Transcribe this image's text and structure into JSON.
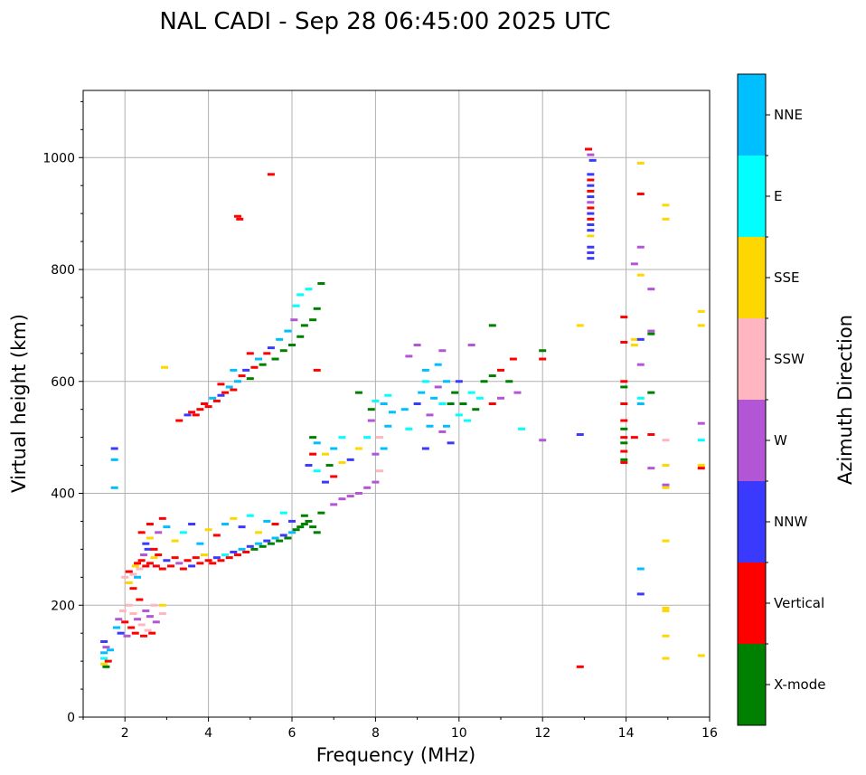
{
  "chart_data": {
    "type": "scatter",
    "title": "NAL CADI - Sep 28 06:45:00 2025 UTC",
    "xlabel": "Frequency (MHz)",
    "ylabel": "Virtual height (km)",
    "xlim": [
      1,
      16
    ],
    "ylim": [
      0,
      1120
    ],
    "xticks": [
      2,
      4,
      6,
      8,
      10,
      12,
      14,
      16
    ],
    "yticks": [
      0,
      200,
      400,
      600,
      800,
      1000
    ],
    "xtick_labels": [
      "2",
      "4",
      "6",
      "8",
      "10",
      "12",
      "14",
      "16"
    ],
    "ytick_labels": [
      "0",
      "200",
      "400",
      "600",
      "800",
      "1000"
    ],
    "grid": true,
    "colorbar": {
      "label": "Azimuth Direction",
      "categories": [
        {
          "name": "X-mode",
          "color": "#008000"
        },
        {
          "name": "Vertical",
          "color": "#ff0000"
        },
        {
          "name": "NNW",
          "color": "#3a3aff"
        },
        {
          "name": "W",
          "color": "#b356d6"
        },
        {
          "name": "SSW",
          "color": "#ffb6c1"
        },
        {
          "name": "SSE",
          "color": "#ffd700"
        },
        {
          "name": "E",
          "color": "#00ffff"
        },
        {
          "name": "NNE",
          "color": "#00bfff"
        }
      ]
    },
    "points": [
      [
        1.5,
        95,
        "SSE"
      ],
      [
        1.5,
        105,
        "E"
      ],
      [
        1.55,
        90,
        "X-mode"
      ],
      [
        1.5,
        115,
        "NNE"
      ],
      [
        1.55,
        125,
        "W"
      ],
      [
        1.5,
        135,
        "NNW"
      ],
      [
        1.6,
        100,
        "Vertical"
      ],
      [
        1.65,
        120,
        "NNE"
      ],
      [
        1.75,
        480,
        "NNW"
      ],
      [
        1.75,
        460,
        "NNE"
      ],
      [
        1.75,
        410,
        "NNE"
      ],
      [
        1.8,
        160,
        "NNE"
      ],
      [
        1.85,
        175,
        "W"
      ],
      [
        1.9,
        150,
        "NNW"
      ],
      [
        1.95,
        190,
        "SSW"
      ],
      [
        2.0,
        170,
        "Vertical"
      ],
      [
        2.05,
        145,
        "W"
      ],
      [
        2.1,
        200,
        "SSW"
      ],
      [
        2.15,
        160,
        "Vertical"
      ],
      [
        2.2,
        185,
        "SSW"
      ],
      [
        2.25,
        150,
        "Vertical"
      ],
      [
        2.3,
        175,
        "W"
      ],
      [
        2.35,
        210,
        "Vertical"
      ],
      [
        2.4,
        165,
        "SSW"
      ],
      [
        2.45,
        145,
        "Vertical"
      ],
      [
        2.5,
        190,
        "W"
      ],
      [
        2.55,
        155,
        "SSW"
      ],
      [
        2.6,
        180,
        "W"
      ],
      [
        2.65,
        150,
        "Vertical"
      ],
      [
        2.7,
        200,
        "SSW"
      ],
      [
        2.75,
        170,
        "W"
      ],
      [
        2.9,
        185,
        "SSW"
      ],
      [
        2.9,
        200,
        "SSE"
      ],
      [
        2.2,
        230,
        "Vertical"
      ],
      [
        2.1,
        240,
        "SSE"
      ],
      [
        2.3,
        250,
        "NNE"
      ],
      [
        2.0,
        250,
        "SSW"
      ],
      [
        2.1,
        260,
        "Vertical"
      ],
      [
        2.2,
        255,
        "SSW"
      ],
      [
        2.25,
        270,
        "SSE"
      ],
      [
        2.3,
        275,
        "Vertical"
      ],
      [
        2.35,
        265,
        "SSW"
      ],
      [
        2.4,
        280,
        "Vertical"
      ],
      [
        2.45,
        290,
        "W"
      ],
      [
        2.5,
        270,
        "Vertical"
      ],
      [
        2.55,
        300,
        "NNW"
      ],
      [
        2.6,
        275,
        "Vertical"
      ],
      [
        2.7,
        285,
        "SSE"
      ],
      [
        2.75,
        270,
        "Vertical"
      ],
      [
        2.8,
        290,
        "Vertical"
      ],
      [
        2.9,
        265,
        "Vertical"
      ],
      [
        3.0,
        280,
        "NNW"
      ],
      [
        3.1,
        270,
        "Vertical"
      ],
      [
        3.2,
        285,
        "Vertical"
      ],
      [
        3.3,
        275,
        "W"
      ],
      [
        3.4,
        265,
        "Vertical"
      ],
      [
        3.5,
        280,
        "Vertical"
      ],
      [
        3.6,
        270,
        "NNW"
      ],
      [
        3.7,
        285,
        "Vertical"
      ],
      [
        3.8,
        275,
        "Vertical"
      ],
      [
        3.9,
        290,
        "SSE"
      ],
      [
        4.0,
        280,
        "Vertical"
      ],
      [
        4.1,
        275,
        "Vertical"
      ],
      [
        4.2,
        285,
        "NNW"
      ],
      [
        4.3,
        280,
        "Vertical"
      ],
      [
        4.4,
        290,
        "E"
      ],
      [
        4.5,
        285,
        "Vertical"
      ],
      [
        4.6,
        295,
        "NNW"
      ],
      [
        4.7,
        290,
        "Vertical"
      ],
      [
        4.8,
        300,
        "NNE"
      ],
      [
        4.9,
        295,
        "Vertical"
      ],
      [
        5.0,
        305,
        "NNW"
      ],
      [
        5.1,
        300,
        "X-mode"
      ],
      [
        5.2,
        310,
        "NNE"
      ],
      [
        5.3,
        305,
        "X-mode"
      ],
      [
        5.4,
        315,
        "NNW"
      ],
      [
        5.5,
        310,
        "X-mode"
      ],
      [
        5.6,
        320,
        "NNE"
      ],
      [
        5.7,
        315,
        "X-mode"
      ],
      [
        5.8,
        325,
        "NNW"
      ],
      [
        5.9,
        320,
        "X-mode"
      ],
      [
        6.0,
        330,
        "NNE"
      ],
      [
        6.1,
        335,
        "X-mode"
      ],
      [
        6.2,
        340,
        "X-mode"
      ],
      [
        6.3,
        345,
        "X-mode"
      ],
      [
        6.4,
        350,
        "X-mode"
      ],
      [
        6.5,
        340,
        "X-mode"
      ],
      [
        6.6,
        330,
        "X-mode"
      ],
      [
        6.7,
        365,
        "X-mode"
      ],
      [
        6.3,
        360,
        "X-mode"
      ],
      [
        2.5,
        310,
        "NNW"
      ],
      [
        2.6,
        320,
        "SSE"
      ],
      [
        2.7,
        300,
        "Vertical"
      ],
      [
        2.8,
        330,
        "W"
      ],
      [
        3.0,
        340,
        "NNE"
      ],
      [
        3.2,
        315,
        "SSE"
      ],
      [
        3.4,
        330,
        "E"
      ],
      [
        3.6,
        345,
        "NNW"
      ],
      [
        3.8,
        310,
        "NNE"
      ],
      [
        4.0,
        335,
        "SSE"
      ],
      [
        4.2,
        325,
        "Vertical"
      ],
      [
        4.4,
        345,
        "NNE"
      ],
      [
        4.6,
        355,
        "SSE"
      ],
      [
        4.8,
        340,
        "NNW"
      ],
      [
        5.0,
        360,
        "E"
      ],
      [
        5.2,
        330,
        "SSE"
      ],
      [
        5.4,
        350,
        "NNE"
      ],
      [
        5.6,
        345,
        "Vertical"
      ],
      [
        5.8,
        365,
        "E"
      ],
      [
        6.0,
        350,
        "NNW"
      ],
      [
        2.4,
        330,
        "Vertical"
      ],
      [
        2.6,
        345,
        "Vertical"
      ],
      [
        2.9,
        355,
        "Vertical"
      ],
      [
        3.3,
        530,
        "Vertical"
      ],
      [
        3.5,
        540,
        "NNW"
      ],
      [
        3.6,
        545,
        "Vertical"
      ],
      [
        3.7,
        540,
        "Vertical"
      ],
      [
        3.8,
        550,
        "Vertical"
      ],
      [
        3.9,
        560,
        "Vertical"
      ],
      [
        4.0,
        555,
        "Vertical"
      ],
      [
        4.1,
        570,
        "NNE"
      ],
      [
        4.2,
        565,
        "Vertical"
      ],
      [
        4.3,
        575,
        "NNW"
      ],
      [
        4.4,
        580,
        "Vertical"
      ],
      [
        4.5,
        590,
        "NNE"
      ],
      [
        4.6,
        585,
        "Vertical"
      ],
      [
        4.7,
        600,
        "NNE"
      ],
      [
        4.8,
        610,
        "Vertical"
      ],
      [
        4.9,
        620,
        "NNW"
      ],
      [
        5.0,
        605,
        "X-mode"
      ],
      [
        5.1,
        625,
        "Vertical"
      ],
      [
        5.2,
        640,
        "NNE"
      ],
      [
        5.3,
        630,
        "X-mode"
      ],
      [
        5.4,
        650,
        "Vertical"
      ],
      [
        5.5,
        660,
        "NNW"
      ],
      [
        5.6,
        640,
        "X-mode"
      ],
      [
        5.7,
        675,
        "NNE"
      ],
      [
        5.8,
        655,
        "X-mode"
      ],
      [
        5.9,
        690,
        "NNE"
      ],
      [
        6.0,
        665,
        "X-mode"
      ],
      [
        6.05,
        710,
        "W"
      ],
      [
        6.1,
        735,
        "E"
      ],
      [
        6.2,
        680,
        "X-mode"
      ],
      [
        6.2,
        755,
        "E"
      ],
      [
        6.3,
        700,
        "X-mode"
      ],
      [
        6.4,
        765,
        "E"
      ],
      [
        4.3,
        595,
        "Vertical"
      ],
      [
        4.6,
        620,
        "NNE"
      ],
      [
        5.0,
        650,
        "Vertical"
      ],
      [
        2.95,
        625,
        "SSE"
      ],
      [
        4.7,
        895,
        "Vertical"
      ],
      [
        4.75,
        890,
        "Vertical"
      ],
      [
        5.5,
        970,
        "Vertical"
      ],
      [
        6.6,
        620,
        "Vertical"
      ],
      [
        6.5,
        710,
        "X-mode"
      ],
      [
        6.7,
        775,
        "X-mode"
      ],
      [
        6.6,
        730,
        "X-mode"
      ],
      [
        6.5,
        500,
        "X-mode"
      ],
      [
        6.5,
        470,
        "Vertical"
      ],
      [
        6.6,
        490,
        "NNE"
      ],
      [
        6.4,
        450,
        "NNW"
      ],
      [
        6.8,
        470,
        "SSE"
      ],
      [
        7.0,
        480,
        "NNE"
      ],
      [
        7.2,
        500,
        "E"
      ],
      [
        7.4,
        460,
        "NNW"
      ],
      [
        7.6,
        480,
        "SSE"
      ],
      [
        7.8,
        500,
        "E"
      ],
      [
        7.0,
        430,
        "Vertical"
      ],
      [
        6.8,
        420,
        "NNW"
      ],
      [
        6.6,
        440,
        "E"
      ],
      [
        6.9,
        450,
        "X-mode"
      ],
      [
        7.2,
        455,
        "SSE"
      ],
      [
        7.0,
        380,
        "W"
      ],
      [
        7.2,
        390,
        "W"
      ],
      [
        7.4,
        395,
        "W"
      ],
      [
        7.6,
        400,
        "W"
      ],
      [
        7.8,
        410,
        "W"
      ],
      [
        8.0,
        420,
        "W"
      ],
      [
        8.1,
        440,
        "SSW"
      ],
      [
        8.0,
        470,
        "W"
      ],
      [
        8.1,
        500,
        "SSW"
      ],
      [
        7.9,
        530,
        "W"
      ],
      [
        8.2,
        480,
        "NNE"
      ],
      [
        8.3,
        520,
        "NNE"
      ],
      [
        8.2,
        560,
        "NNE"
      ],
      [
        8.3,
        575,
        "E"
      ],
      [
        8.4,
        545,
        "NNE"
      ],
      [
        7.6,
        580,
        "X-mode"
      ],
      [
        8.0,
        565,
        "E"
      ],
      [
        7.9,
        550,
        "X-mode"
      ],
      [
        8.7,
        550,
        "NNE"
      ],
      [
        8.8,
        515,
        "E"
      ],
      [
        8.8,
        645,
        "W"
      ],
      [
        9.0,
        560,
        "NNW"
      ],
      [
        9.1,
        580,
        "NNE"
      ],
      [
        9.2,
        600,
        "E"
      ],
      [
        9.2,
        620,
        "NNE"
      ],
      [
        9.3,
        540,
        "W"
      ],
      [
        9.3,
        520,
        "NNE"
      ],
      [
        9.4,
        570,
        "NNE"
      ],
      [
        9.5,
        590,
        "W"
      ],
      [
        9.5,
        630,
        "NNE"
      ],
      [
        9.6,
        560,
        "E"
      ],
      [
        9.7,
        600,
        "NNE"
      ],
      [
        9.7,
        520,
        "NNE"
      ],
      [
        9.8,
        560,
        "X-mode"
      ],
      [
        9.9,
        580,
        "X-mode"
      ],
      [
        10.0,
        540,
        "E"
      ],
      [
        10.0,
        600,
        "NNW"
      ],
      [
        10.1,
        560,
        "X-mode"
      ],
      [
        10.2,
        530,
        "E"
      ],
      [
        10.3,
        580,
        "E"
      ],
      [
        10.4,
        550,
        "X-mode"
      ],
      [
        10.5,
        570,
        "E"
      ],
      [
        10.6,
        600,
        "X-mode"
      ],
      [
        10.8,
        560,
        "Vertical"
      ],
      [
        10.8,
        610,
        "X-mode"
      ],
      [
        11.0,
        620,
        "Vertical"
      ],
      [
        11.2,
        600,
        "X-mode"
      ],
      [
        11.3,
        640,
        "Vertical"
      ],
      [
        11.4,
        580,
        "W"
      ],
      [
        9.0,
        665,
        "W"
      ],
      [
        9.6,
        655,
        "W"
      ],
      [
        10.3,
        665,
        "W"
      ],
      [
        10.8,
        700,
        "X-mode"
      ],
      [
        9.2,
        480,
        "NNW"
      ],
      [
        9.6,
        510,
        "W"
      ],
      [
        9.8,
        490,
        "NNW"
      ],
      [
        11.0,
        570,
        "W"
      ],
      [
        12.0,
        655,
        "X-mode"
      ],
      [
        12.0,
        640,
        "Vertical"
      ],
      [
        11.5,
        515,
        "E"
      ],
      [
        12.0,
        495,
        "W"
      ],
      [
        13.1,
        1015,
        "Vertical"
      ],
      [
        13.15,
        1005,
        "W"
      ],
      [
        13.2,
        995,
        "NNW"
      ],
      [
        13.15,
        970,
        "NNW"
      ],
      [
        13.15,
        960,
        "Vertical"
      ],
      [
        13.15,
        950,
        "NNW"
      ],
      [
        13.15,
        940,
        "Vertical"
      ],
      [
        13.15,
        930,
        "NNW"
      ],
      [
        13.15,
        920,
        "W"
      ],
      [
        13.15,
        910,
        "Vertical"
      ],
      [
        13.15,
        900,
        "NNW"
      ],
      [
        13.15,
        890,
        "Vertical"
      ],
      [
        13.15,
        880,
        "NNW"
      ],
      [
        13.15,
        870,
        "NNW"
      ],
      [
        13.15,
        860,
        "SSE"
      ],
      [
        13.15,
        840,
        "NNW"
      ],
      [
        13.15,
        830,
        "NNW"
      ],
      [
        13.15,
        820,
        "NNW"
      ],
      [
        12.9,
        700,
        "SSE"
      ],
      [
        12.9,
        505,
        "NNW"
      ],
      [
        12.9,
        90,
        "Vertical"
      ],
      [
        13.95,
        715,
        "Vertical"
      ],
      [
        13.95,
        670,
        "Vertical"
      ],
      [
        13.95,
        600,
        "Vertical"
      ],
      [
        13.95,
        590,
        "X-mode"
      ],
      [
        13.95,
        560,
        "Vertical"
      ],
      [
        13.95,
        530,
        "Vertical"
      ],
      [
        13.95,
        515,
        "X-mode"
      ],
      [
        13.95,
        500,
        "Vertical"
      ],
      [
        13.95,
        490,
        "X-mode"
      ],
      [
        13.95,
        475,
        "Vertical"
      ],
      [
        13.95,
        460,
        "X-mode"
      ],
      [
        13.95,
        455,
        "Vertical"
      ],
      [
        14.2,
        810,
        "W"
      ],
      [
        14.2,
        675,
        "SSE"
      ],
      [
        14.2,
        665,
        "SSE"
      ],
      [
        14.2,
        500,
        "Vertical"
      ],
      [
        14.35,
        990,
        "SSE"
      ],
      [
        14.35,
        935,
        "Vertical"
      ],
      [
        14.35,
        840,
        "W"
      ],
      [
        14.35,
        790,
        "SSE"
      ],
      [
        14.35,
        675,
        "NNW"
      ],
      [
        14.35,
        630,
        "W"
      ],
      [
        14.35,
        570,
        "E"
      ],
      [
        14.35,
        560,
        "NNE"
      ],
      [
        14.35,
        265,
        "NNE"
      ],
      [
        14.35,
        220,
        "NNW"
      ],
      [
        14.6,
        765,
        "W"
      ],
      [
        14.6,
        690,
        "W"
      ],
      [
        14.6,
        580,
        "X-mode"
      ],
      [
        14.6,
        505,
        "Vertical"
      ],
      [
        14.6,
        445,
        "W"
      ],
      [
        14.6,
        685,
        "X-mode"
      ],
      [
        14.95,
        915,
        "SSE"
      ],
      [
        14.95,
        890,
        "SSE"
      ],
      [
        14.95,
        495,
        "SSW"
      ],
      [
        14.95,
        450,
        "SSE"
      ],
      [
        14.95,
        415,
        "W"
      ],
      [
        14.95,
        410,
        "SSE"
      ],
      [
        14.95,
        315,
        "SSE"
      ],
      [
        14.95,
        195,
        "SSE"
      ],
      [
        14.95,
        190,
        "SSE"
      ],
      [
        14.95,
        145,
        "SSE"
      ],
      [
        14.95,
        105,
        "SSE"
      ],
      [
        15.8,
        725,
        "SSE"
      ],
      [
        15.8,
        700,
        "SSE"
      ],
      [
        15.8,
        525,
        "W"
      ],
      [
        15.8,
        495,
        "E"
      ],
      [
        15.8,
        450,
        "SSE"
      ],
      [
        15.8,
        445,
        "Vertical"
      ],
      [
        15.8,
        110,
        "SSE"
      ]
    ]
  }
}
